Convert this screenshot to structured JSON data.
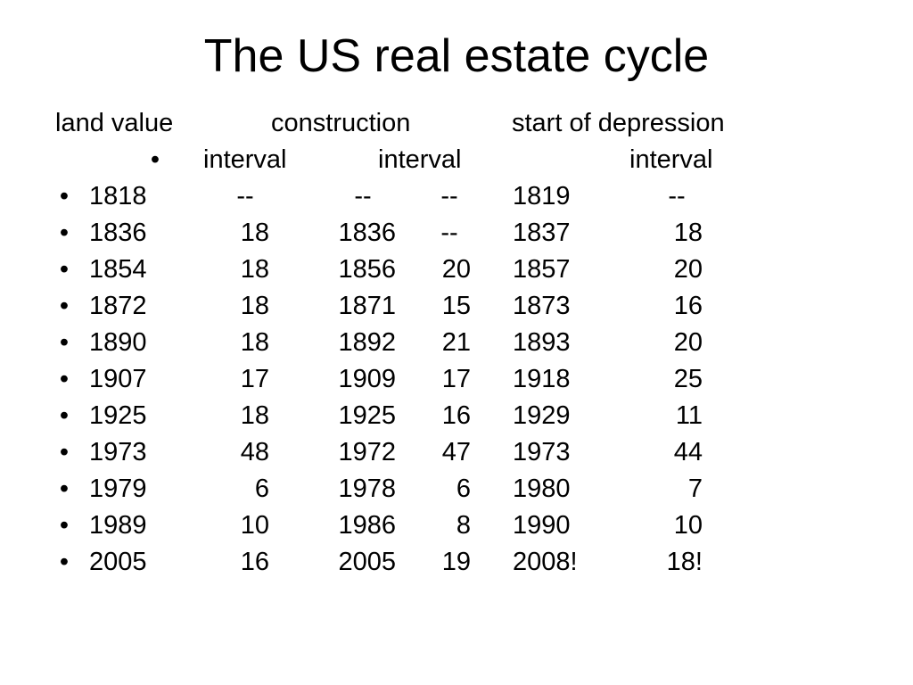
{
  "title": "The US real estate cycle",
  "header_row_1": {
    "land_value": "land value",
    "construction": "construction",
    "depression": "start of depression"
  },
  "header_row_2": {
    "bullet": "•",
    "land_interval": "interval",
    "construction_interval": "interval",
    "depression_interval": "interval"
  },
  "rows": [
    {
      "bullet": "•",
      "land_year": "1818",
      "land_interval": "--",
      "construction_year": "--",
      "construction_interval": "--",
      "depression_year": "1819",
      "depression_interval": "--"
    },
    {
      "bullet": "•",
      "land_year": "1836",
      "land_interval": "18",
      "construction_year": "1836",
      "construction_interval": "--",
      "depression_year": "1837",
      "depression_interval": "18"
    },
    {
      "bullet": "•",
      "land_year": "1854",
      "land_interval": "18",
      "construction_year": "1856",
      "construction_interval": "20",
      "depression_year": "1857",
      "depression_interval": "20"
    },
    {
      "bullet": "•",
      "land_year": "1872",
      "land_interval": "18",
      "construction_year": "1871",
      "construction_interval": "15",
      "depression_year": "1873",
      "depression_interval": "16"
    },
    {
      "bullet": "•",
      "land_year": "1890",
      "land_interval": "18",
      "construction_year": "1892",
      "construction_interval": "21",
      "depression_year": "1893",
      "depression_interval": "20"
    },
    {
      "bullet": "•",
      "land_year": "1907",
      "land_interval": "17",
      "construction_year": "1909",
      "construction_interval": "17",
      "depression_year": "1918",
      "depression_interval": "25"
    },
    {
      "bullet": "•",
      "land_year": "1925",
      "land_interval": "18",
      "construction_year": "1925",
      "construction_interval": "16",
      "depression_year": "1929",
      "depression_interval": "11"
    },
    {
      "bullet": "•",
      "land_year": "1973",
      "land_interval": "48",
      "construction_year": "1972",
      "construction_interval": "47",
      "depression_year": "1973",
      "depression_interval": "44"
    },
    {
      "bullet": "•",
      "land_year": "1979",
      "land_interval": "6",
      "construction_year": "1978",
      "construction_interval": "6",
      "depression_year": "1980",
      "depression_interval": "7"
    },
    {
      "bullet": "•",
      "land_year": "1989",
      "land_interval": "10",
      "construction_year": "1986",
      "construction_interval": "8",
      "depression_year": "1990",
      "depression_interval": "10"
    },
    {
      "bullet": "•",
      "land_year": "2005",
      "land_interval": "16",
      "construction_year": "2005",
      "construction_interval": "19",
      "depression_year": "2008!",
      "depression_interval": "18!"
    }
  ]
}
